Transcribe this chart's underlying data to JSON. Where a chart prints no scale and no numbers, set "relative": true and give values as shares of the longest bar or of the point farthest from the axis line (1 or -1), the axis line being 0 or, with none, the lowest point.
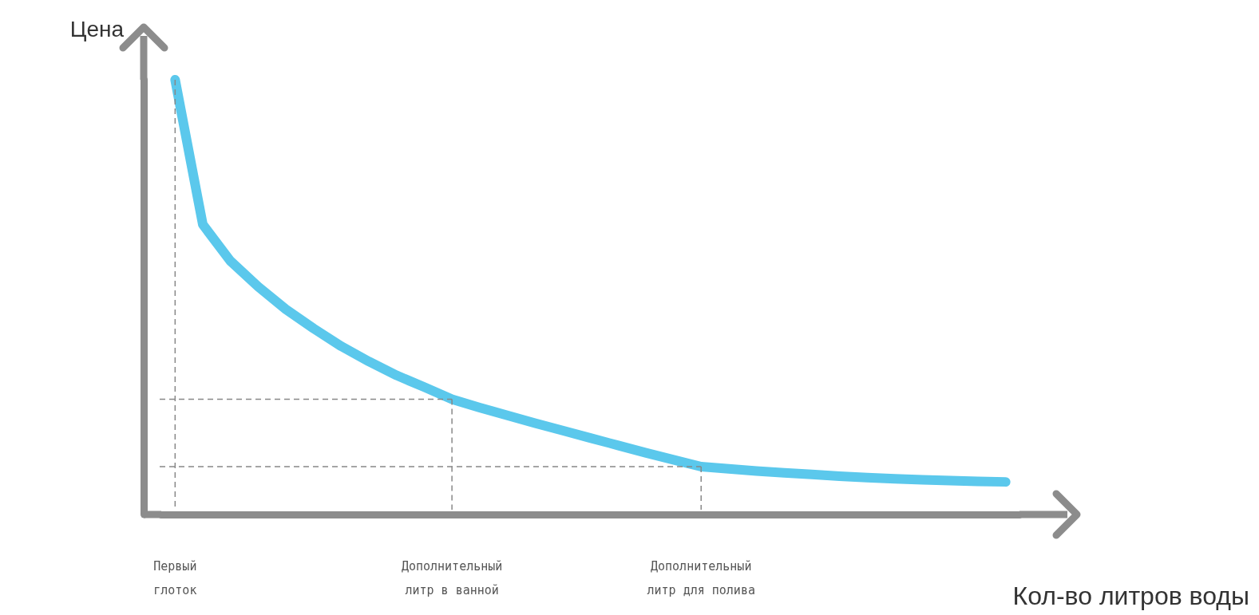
{
  "chart_data": {
    "type": "line",
    "relative": true,
    "ylabel": "Цена",
    "xlabel": "Кол-во литров воды",
    "categories": [
      "Первый\nглоток",
      null,
      null,
      null,
      null,
      null,
      null,
      null,
      null,
      null,
      "Дополнительный\nлитр в ванной",
      null,
      null,
      null,
      null,
      null,
      null,
      null,
      null,
      "Дополнительный\nлитр для полива",
      null,
      null,
      null,
      null,
      null,
      null,
      null,
      null,
      null,
      null,
      null
    ],
    "series": [
      {
        "color": "#5bc8ec",
        "values": [
          1.0,
          0.667,
          0.583,
          0.524,
          0.472,
          0.428,
          0.387,
          0.352,
          0.32,
          0.293,
          0.265,
          0.246,
          0.228,
          0.21,
          0.193,
          0.176,
          0.159,
          0.142,
          0.126,
          0.11,
          0.105,
          0.1,
          0.096,
          0.092,
          0.088,
          0.085,
          0.082,
          0.08,
          0.078,
          0.076,
          0.075
        ]
      }
    ],
    "ref_lines": [
      {
        "axis": "x",
        "value": "Первый\nглоток",
        "line_style": "dashed",
        "color": "#888888"
      },
      {
        "axis": "x",
        "value": "Дополнительный\nлитр в ванной",
        "line_style": "dashed",
        "color": "#888888"
      },
      {
        "axis": "x",
        "value": "Дополнительный\nлитр для полива",
        "line_style": "dashed",
        "color": "#888888"
      },
      {
        "axis": "y",
        "value": 0.265,
        "line_style": "dashed",
        "color": "#888888"
      },
      {
        "axis": "y",
        "value": 0.11,
        "line_style": "dashed",
        "color": "#888888"
      }
    ],
    "grid": false
  }
}
